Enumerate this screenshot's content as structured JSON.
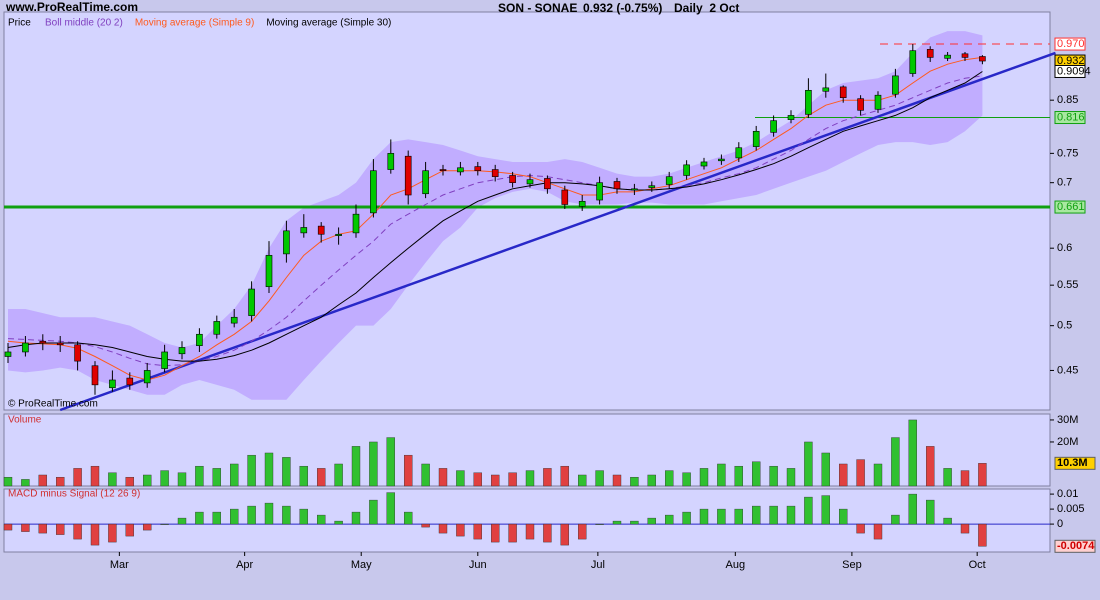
{
  "site": "www.ProRealTime.com",
  "header": {
    "symbol": "SON - SONAE",
    "last": "0.932 (-0.75%)",
    "period": "Daily  2 Oct"
  },
  "copyright": "© ProRealTime.com",
  "chart_data": [
    {
      "type": "candlestick",
      "name": "Price",
      "log_scale": true,
      "up_color": "#00c800",
      "down_color": "#e00000",
      "open": [
        0.465,
        0.47,
        0.482,
        0.48,
        0.478,
        0.455,
        0.432,
        0.442,
        0.437,
        0.452,
        0.468,
        0.477,
        0.49,
        0.503,
        0.512,
        0.548,
        0.592,
        0.622,
        0.632,
        0.618,
        0.622,
        0.652,
        0.722,
        0.745,
        0.682,
        0.722,
        0.718,
        0.727,
        0.722,
        0.712,
        0.698,
        0.707,
        0.688,
        0.662,
        0.672,
        0.702,
        0.688,
        0.692,
        0.697,
        0.712,
        0.728,
        0.737,
        0.742,
        0.762,
        0.788,
        0.812,
        0.822,
        0.868,
        0.877,
        0.853,
        0.832,
        0.862,
        0.905,
        0.958,
        0.938,
        0.948,
        0.942
      ],
      "high": [
        0.48,
        0.488,
        0.49,
        0.488,
        0.482,
        0.46,
        0.45,
        0.448,
        0.458,
        0.478,
        0.482,
        0.497,
        0.512,
        0.52,
        0.555,
        0.61,
        0.64,
        0.65,
        0.638,
        0.63,
        0.665,
        0.74,
        0.775,
        0.755,
        0.735,
        0.73,
        0.735,
        0.735,
        0.73,
        0.718,
        0.715,
        0.712,
        0.695,
        0.68,
        0.71,
        0.708,
        0.698,
        0.702,
        0.718,
        0.738,
        0.742,
        0.748,
        0.77,
        0.8,
        0.82,
        0.83,
        0.895,
        0.905,
        0.88,
        0.86,
        0.868,
        0.915,
        0.97,
        0.965,
        0.952,
        0.952,
        0.945
      ],
      "low": [
        0.458,
        0.465,
        0.472,
        0.47,
        0.45,
        0.425,
        0.428,
        0.43,
        0.432,
        0.448,
        0.462,
        0.47,
        0.485,
        0.498,
        0.505,
        0.54,
        0.58,
        0.615,
        0.608,
        0.605,
        0.615,
        0.645,
        0.715,
        0.665,
        0.675,
        0.712,
        0.712,
        0.712,
        0.702,
        0.692,
        0.692,
        0.682,
        0.658,
        0.655,
        0.665,
        0.682,
        0.68,
        0.685,
        0.69,
        0.705,
        0.722,
        0.73,
        0.735,
        0.755,
        0.78,
        0.805,
        0.815,
        0.855,
        0.845,
        0.82,
        0.825,
        0.855,
        0.898,
        0.93,
        0.932,
        0.932,
        0.925
      ],
      "close": [
        0.47,
        0.48,
        0.48,
        0.478,
        0.46,
        0.435,
        0.44,
        0.435,
        0.45,
        0.47,
        0.475,
        0.49,
        0.505,
        0.51,
        0.545,
        0.59,
        0.625,
        0.63,
        0.62,
        0.62,
        0.65,
        0.72,
        0.75,
        0.68,
        0.72,
        0.72,
        0.725,
        0.72,
        0.71,
        0.7,
        0.705,
        0.69,
        0.665,
        0.67,
        0.7,
        0.69,
        0.69,
        0.695,
        0.71,
        0.73,
        0.735,
        0.74,
        0.76,
        0.79,
        0.81,
        0.82,
        0.87,
        0.875,
        0.855,
        0.83,
        0.86,
        0.9,
        0.955,
        0.94,
        0.945,
        0.94,
        0.932
      ],
      "series": [
        {
          "name": "Boll middle (20 2)",
          "color": "#8040c0",
          "dashed": true,
          "values": [
            0.485,
            0.484,
            0.483,
            0.482,
            0.48,
            0.476,
            0.47,
            0.463,
            0.457,
            0.455,
            0.456,
            0.46,
            0.465,
            0.472,
            0.482,
            0.495,
            0.51,
            0.53,
            0.55,
            0.57,
            0.59,
            0.61,
            0.635,
            0.65,
            0.665,
            0.68,
            0.69,
            0.7,
            0.705,
            0.71,
            0.712,
            0.71,
            0.705,
            0.7,
            0.695,
            0.69,
            0.688,
            0.688,
            0.69,
            0.695,
            0.7,
            0.708,
            0.715,
            0.725,
            0.74,
            0.755,
            0.775,
            0.795,
            0.81,
            0.82,
            0.83,
            0.84,
            0.855,
            0.87,
            0.885,
            0.895,
            0.9
          ],
          "band": {
            "color": "#b08cff",
            "upper": [
              0.52,
              0.52,
              0.515,
              0.51,
              0.51,
              0.51,
              0.505,
              0.5,
              0.49,
              0.48,
              0.475,
              0.48,
              0.5,
              0.52,
              0.55,
              0.6,
              0.64,
              0.66,
              0.67,
              0.68,
              0.7,
              0.74,
              0.77,
              0.775,
              0.77,
              0.765,
              0.755,
              0.745,
              0.74,
              0.735,
              0.735,
              0.735,
              0.74,
              0.735,
              0.725,
              0.715,
              0.71,
              0.71,
              0.715,
              0.725,
              0.735,
              0.745,
              0.755,
              0.77,
              0.79,
              0.81,
              0.84,
              0.87,
              0.885,
              0.89,
              0.895,
              0.91,
              0.95,
              0.985,
              1.0,
              1.0,
              0.99
            ],
            "lower": [
              0.45,
              0.448,
              0.45,
              0.453,
              0.45,
              0.44,
              0.435,
              0.43,
              0.425,
              0.425,
              0.435,
              0.44,
              0.435,
              0.43,
              0.42,
              0.42,
              0.42,
              0.44,
              0.46,
              0.48,
              0.5,
              0.5,
              0.52,
              0.55,
              0.58,
              0.61,
              0.63,
              0.66,
              0.675,
              0.685,
              0.69,
              0.685,
              0.67,
              0.665,
              0.665,
              0.665,
              0.668,
              0.668,
              0.665,
              0.665,
              0.665,
              0.67,
              0.675,
              0.68,
              0.69,
              0.7,
              0.71,
              0.72,
              0.735,
              0.75,
              0.765,
              0.77,
              0.77,
              0.765,
              0.77,
              0.79,
              0.82
            ]
          }
        },
        {
          "name": "Moving average (Simple 9)",
          "color": "#ff5a1e",
          "dashed": false,
          "values": [
            0.482,
            0.48,
            0.479,
            0.478,
            0.474,
            0.465,
            0.455,
            0.445,
            0.44,
            0.445,
            0.455,
            0.465,
            0.478,
            0.49,
            0.505,
            0.53,
            0.56,
            0.59,
            0.61,
            0.62,
            0.625,
            0.65,
            0.68,
            0.69,
            0.705,
            0.72,
            0.72,
            0.72,
            0.718,
            0.715,
            0.71,
            0.7,
            0.69,
            0.68,
            0.68,
            0.685,
            0.685,
            0.69,
            0.695,
            0.705,
            0.715,
            0.725,
            0.74,
            0.755,
            0.775,
            0.795,
            0.82,
            0.84,
            0.85,
            0.85,
            0.85,
            0.86,
            0.885,
            0.91,
            0.925,
            0.935,
            0.94
          ]
        },
        {
          "name": "Moving average (Simple 30)",
          "color": "#000000",
          "dashed": false,
          "values": [
            0.475,
            0.478,
            0.48,
            0.48,
            0.48,
            0.478,
            0.475,
            0.47,
            0.465,
            0.462,
            0.46,
            0.46,
            0.462,
            0.466,
            0.472,
            0.48,
            0.49,
            0.5,
            0.51,
            0.525,
            0.54,
            0.56,
            0.58,
            0.6,
            0.62,
            0.64,
            0.655,
            0.67,
            0.68,
            0.69,
            0.695,
            0.7,
            0.7,
            0.698,
            0.695,
            0.69,
            0.688,
            0.688,
            0.69,
            0.693,
            0.698,
            0.705,
            0.713,
            0.722,
            0.732,
            0.745,
            0.76,
            0.775,
            0.79,
            0.8,
            0.81,
            0.82,
            0.835,
            0.855,
            0.87,
            0.885,
            0.9094
          ]
        }
      ],
      "trendline": {
        "x": [
          3,
          60.2
        ],
        "y": [
          0.41,
          0.95
        ],
        "color": "#2828c8"
      },
      "levels": [
        {
          "value": 0.97,
          "label": "0.970",
          "style": "dashed",
          "color": "#ff3030",
          "box": "#ffffff"
        },
        {
          "value": 0.932,
          "label": "0.932",
          "style": "none",
          "color": "#000000",
          "box": "#ffd000"
        },
        {
          "value": 0.9094,
          "label": "0.9094",
          "style": "none",
          "color": "#000000",
          "box": "#ffffff"
        },
        {
          "value": 0.816,
          "label": "0.816",
          "style": "thin",
          "color": "#10a010",
          "box": "#a8e8a0"
        },
        {
          "value": 0.661,
          "label": "0.661",
          "style": "thick",
          "color": "#10a010",
          "box": "#a8e8a0"
        }
      ],
      "ylim": [
        0.41,
        1.046
      ],
      "yticks": [
        0.45,
        0.5,
        0.55,
        0.6,
        0.7,
        0.75,
        0.85
      ]
    },
    {
      "type": "bar",
      "title": "Volume",
      "up_color": "#30c030",
      "down_color": "#e04040",
      "values": [
        4000000,
        3000000,
        5000000,
        4000000,
        8000000,
        9000000,
        6000000,
        4000000,
        5000000,
        7000000,
        6000000,
        9000000,
        8000000,
        10000000,
        14000000,
        15000000,
        13000000,
        9000000,
        8000000,
        10000000,
        18000000,
        20000000,
        22000000,
        14000000,
        10000000,
        8000000,
        7000000,
        6000000,
        5000000,
        6000000,
        7000000,
        8000000,
        9000000,
        5000000,
        7000000,
        5000000,
        4000000,
        5000000,
        7000000,
        6000000,
        8000000,
        10000000,
        9000000,
        11000000,
        9000000,
        8000000,
        20000000,
        15000000,
        10000000,
        12000000,
        10000000,
        22000000,
        30000000,
        18000000,
        8000000,
        7000000,
        10300000
      ],
      "last_label": {
        "value": 10300000,
        "label": "10.3M"
      },
      "ylim": [
        0,
        32700000
      ],
      "yticks": [
        {
          "value": 20000000,
          "label": "20M"
        },
        {
          "value": 30000000,
          "label": "30M"
        }
      ]
    },
    {
      "type": "bar",
      "title": "MACD minus Signal (12 26 9)",
      "up_color": "#30c030",
      "down_color": "#e04040",
      "zero_color": "#2828c8",
      "values": [
        -0.002,
        -0.0025,
        -0.003,
        -0.0035,
        -0.005,
        -0.007,
        -0.006,
        -0.004,
        -0.002,
        0,
        0.002,
        0.004,
        0.004,
        0.005,
        0.006,
        0.007,
        0.006,
        0.005,
        0.003,
        0.001,
        0.004,
        0.008,
        0.0105,
        0.004,
        -0.001,
        -0.003,
        -0.004,
        -0.005,
        -0.006,
        -0.006,
        -0.005,
        -0.006,
        -0.007,
        -0.005,
        0,
        0.001,
        0.001,
        0.002,
        0.003,
        0.004,
        0.005,
        0.005,
        0.005,
        0.006,
        0.006,
        0.006,
        0.009,
        0.0095,
        0.005,
        -0.003,
        -0.005,
        0.003,
        0.01,
        0.008,
        0.002,
        -0.003,
        -0.0074
      ],
      "last_label": {
        "value": -0.0074,
        "label": "-0.0074"
      },
      "ylim": [
        -0.0093,
        0.0117
      ],
      "yticks": [
        0,
        0.005,
        0.01
      ],
      "xticks": [
        {
          "value": 6.4,
          "label": "Mar"
        },
        {
          "value": 13.6,
          "label": "Apr"
        },
        {
          "value": 20.3,
          "label": "May"
        },
        {
          "value": 27,
          "label": "Jun"
        },
        {
          "value": 33.9,
          "label": "Jul"
        },
        {
          "value": 41.8,
          "label": "Aug"
        },
        {
          "value": 48.5,
          "label": "Sep"
        },
        {
          "value": 55.7,
          "label": "Oct"
        }
      ]
    }
  ]
}
